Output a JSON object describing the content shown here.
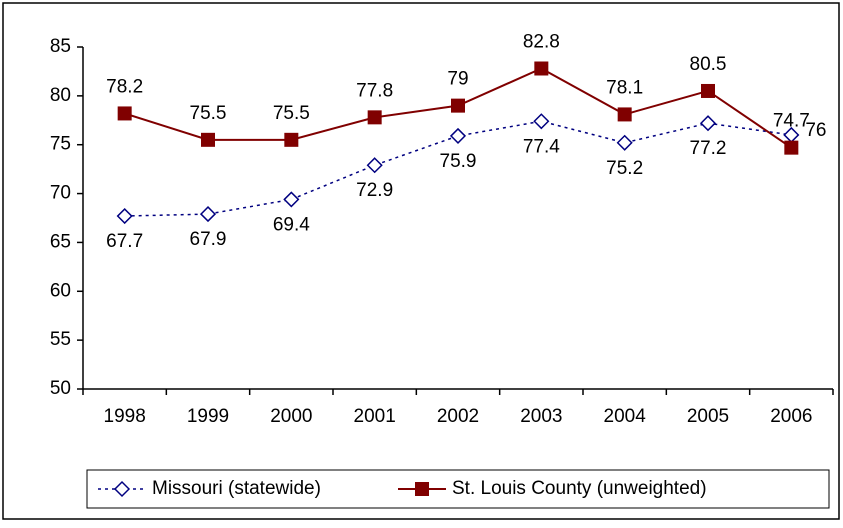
{
  "chart_data": {
    "type": "line",
    "categories": [
      "1998",
      "1999",
      "2000",
      "2001",
      "2002",
      "2003",
      "2004",
      "2005",
      "2006"
    ],
    "series": [
      {
        "name": "Missouri (statewide)",
        "color": "#000080",
        "values": [
          67.7,
          67.9,
          69.4,
          72.9,
          75.9,
          77.4,
          75.2,
          77.2,
          76
        ]
      },
      {
        "name": "St. Louis County (unweighted)",
        "color": "#800000",
        "values": [
          78.2,
          75.5,
          75.5,
          77.8,
          79,
          82.8,
          78.1,
          80.5,
          74.7
        ]
      }
    ],
    "ylim": [
      50,
      85
    ],
    "yticks": [
      50,
      55,
      60,
      65,
      70,
      75,
      80,
      85
    ],
    "grid": false,
    "legend": "bottom"
  }
}
